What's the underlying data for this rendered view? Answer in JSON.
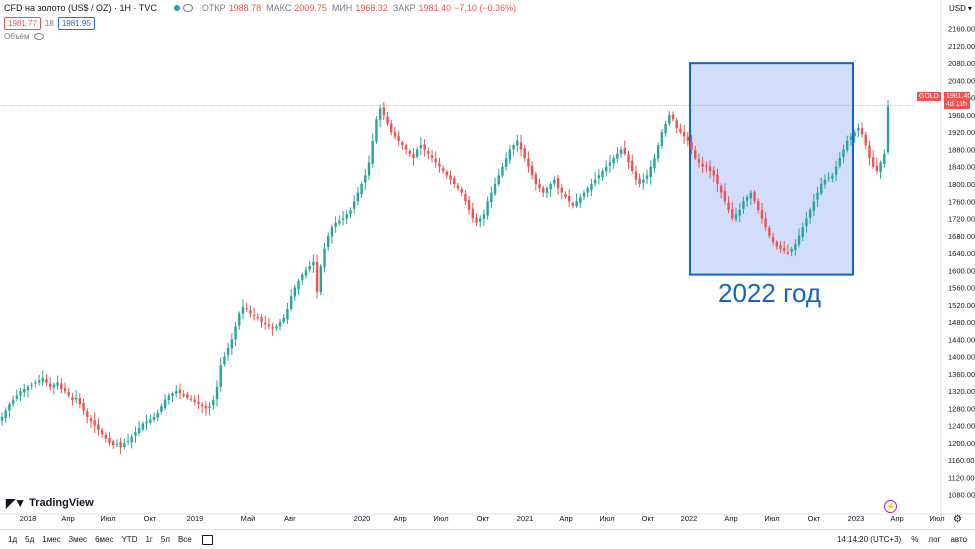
{
  "header": {
    "symbol": "CFD на золото (US$ / OZ) · 1H · TVC",
    "open_label": "ОТКР",
    "open": "1988.78",
    "high_label": "МАКС",
    "high": "2009.75",
    "low_label": "МИН",
    "low": "1968.32",
    "close_label": "ЗАКР",
    "close": "1981.40",
    "change": "−7.10 (−0.36%)"
  },
  "prices": {
    "bid": "1981.77",
    "spread": "18",
    "ask": "1981.95"
  },
  "volume_label": "Объём",
  "currency": "USD",
  "price_tag": {
    "symbol": "GOLD",
    "price": "1981.40",
    "countdown": "4d 11h"
  },
  "annotation": "2022 год",
  "brand": "TradingView",
  "timeframes": [
    "1д",
    "5д",
    "1мес",
    "3мес",
    "6мес",
    "YTD",
    "1г",
    "5л",
    "Все"
  ],
  "clock": "14:14:20 (UTC+3)",
  "percent_label": "%",
  "log_label": "лог",
  "auto_label": "авто",
  "colors": {
    "up": "#26a69a",
    "down": "#ef5350",
    "box": "#1565c0",
    "boxfill": "#c5d4fa"
  },
  "chart_data": {
    "type": "candlestick",
    "y_ticks": [
      1080,
      1120,
      1160,
      1200,
      1240,
      1280,
      1320,
      1360,
      1400,
      1440,
      1480,
      1520,
      1560,
      1600,
      1640,
      1680,
      1720,
      1760,
      1800,
      1840,
      1880,
      1920,
      1960,
      2000,
      2040,
      2080,
      2120,
      2160
    ],
    "x_labels": [
      "2018",
      "Апр",
      "Июл",
      "Окт",
      "2019",
      "Май",
      "Авг",
      "2020",
      "Апр",
      "Июл",
      "Окт",
      "2021",
      "Апр",
      "Июл",
      "Окт",
      "2022",
      "Апр",
      "Июл",
      "Окт",
      "2023",
      "Апр",
      "Июл"
    ],
    "ylim": [
      1040,
      2180
    ],
    "current_price": 1981.4,
    "highlight_range": {
      "from": "2022",
      "price_low": 1590,
      "price_high": 2080
    },
    "weekly_close": [
      1260,
      1275,
      1290,
      1300,
      1310,
      1320,
      1325,
      1330,
      1335,
      1340,
      1345,
      1350,
      1340,
      1330,
      1335,
      1340,
      1325,
      1320,
      1310,
      1300,
      1305,
      1290,
      1275,
      1260,
      1250,
      1240,
      1230,
      1220,
      1210,
      1200,
      1195,
      1198,
      1190,
      1200,
      1205,
      1215,
      1225,
      1235,
      1245,
      1250,
      1255,
      1260,
      1270,
      1285,
      1300,
      1310,
      1315,
      1320,
      1315,
      1310,
      1305,
      1300,
      1295,
      1290,
      1285,
      1280,
      1285,
      1300,
      1330,
      1380,
      1400,
      1420,
      1440,
      1470,
      1500,
      1515,
      1510,
      1500,
      1495,
      1490,
      1480,
      1475,
      1470,
      1465,
      1470,
      1480,
      1490,
      1510,
      1540,
      1560,
      1575,
      1590,
      1600,
      1610,
      1620,
      1550,
      1610,
      1650,
      1680,
      1700,
      1710,
      1715,
      1720,
      1730,
      1740,
      1760,
      1780,
      1800,
      1820,
      1850,
      1900,
      1950,
      1975,
      1960,
      1940,
      1920,
      1910,
      1900,
      1890,
      1880,
      1870,
      1860,
      1880,
      1890,
      1880,
      1870,
      1860,
      1850,
      1840,
      1830,
      1820,
      1810,
      1800,
      1790,
      1780,
      1760,
      1740,
      1720,
      1710,
      1720,
      1730,
      1760,
      1780,
      1800,
      1820,
      1840,
      1860,
      1880,
      1890,
      1900,
      1880,
      1860,
      1840,
      1820,
      1800,
      1790,
      1780,
      1790,
      1800,
      1810,
      1790,
      1780,
      1770,
      1760,
      1750,
      1760,
      1770,
      1780,
      1790,
      1800,
      1810,
      1820,
      1830,
      1840,
      1850,
      1860,
      1870,
      1880,
      1870,
      1850,
      1830,
      1810,
      1800,
      1810,
      1820,
      1840,
      1860,
      1890,
      1920,
      1940,
      1960,
      1950,
      1930,
      1920,
      1910,
      1900,
      1880,
      1860,
      1850,
      1840,
      1840,
      1830,
      1820,
      1800,
      1780,
      1760,
      1740,
      1720,
      1730,
      1740,
      1760,
      1770,
      1780,
      1760,
      1740,
      1720,
      1700,
      1680,
      1665,
      1655,
      1650,
      1645,
      1640,
      1650,
      1660,
      1680,
      1700,
      1720,
      1740,
      1760,
      1780,
      1800,
      1810,
      1815,
      1820,
      1840,
      1860,
      1880,
      1900,
      1910,
      1920,
      1930,
      1915,
      1890,
      1860,
      1840,
      1830,
      1850,
      1870,
      1980
    ]
  }
}
